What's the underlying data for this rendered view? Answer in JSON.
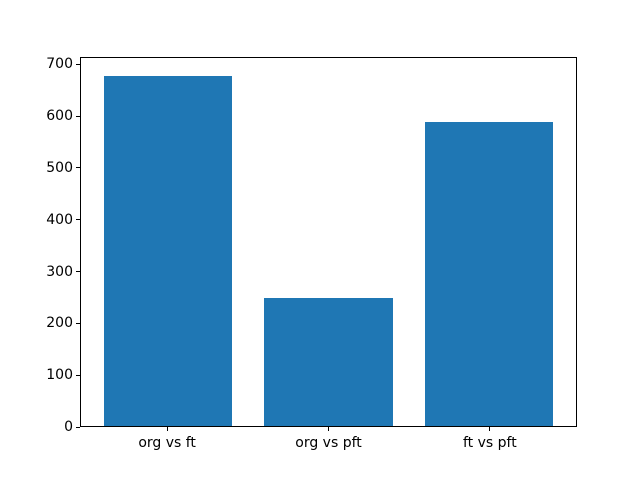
{
  "chart_data": {
    "type": "bar",
    "categories": [
      "org vs ft",
      "org vs pft",
      "ft vs pft"
    ],
    "values": [
      680,
      248,
      590
    ],
    "title": "",
    "xlabel": "",
    "ylabel": "",
    "yticks": [
      0,
      100,
      200,
      300,
      400,
      500,
      600,
      700
    ],
    "ylim": [
      0,
      714
    ],
    "xlim": [
      -0.54,
      2.54
    ],
    "bar_width": 0.8,
    "bar_color": "#1f77b4",
    "spine_color": "#000000",
    "tick_label_color": "#000000",
    "background_color": "#ffffff",
    "grid": false,
    "legend": null
  }
}
